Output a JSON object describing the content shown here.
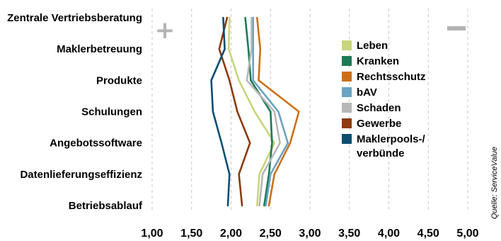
{
  "chart_data": {
    "type": "line",
    "orientation": "horizontal",
    "categories": [
      "Zentrale Vertriebsberatung",
      "Maklerbetreuung",
      "Produkte",
      "Schulungen",
      "Angebotssoftware",
      "Datenlieferungseffizienz",
      "Betriebsablauf"
    ],
    "xlim": [
      1.0,
      5.0
    ],
    "x_ticks": [
      "1,00",
      "1,50",
      "2,00",
      "2,50",
      "3,00",
      "3,50",
      "4,00",
      "4,50",
      "5,00"
    ],
    "grid": "vertical dashed",
    "legend_position": "right",
    "plus_symbol": "+",
    "minus_symbol": "−",
    "source": "Quelle: ServiceValue",
    "series": [
      {
        "name": "Leben",
        "color": "#c9d47c",
        "values": [
          1.98,
          1.97,
          2.1,
          2.3,
          2.55,
          2.36,
          2.33
        ]
      },
      {
        "name": "Kranken",
        "color": "#1d7a55",
        "values": [
          2.18,
          2.22,
          2.25,
          2.5,
          2.52,
          2.48,
          2.42
        ]
      },
      {
        "name": "Rechtsschutz",
        "color": "#cc7018",
        "values": [
          2.33,
          2.37,
          2.35,
          2.86,
          2.75,
          2.55,
          2.48
        ]
      },
      {
        "name": "bAV",
        "color": "#6aa3c3",
        "values": [
          2.28,
          2.28,
          2.28,
          2.6,
          2.72,
          2.5,
          2.44
        ]
      },
      {
        "name": "Schaden",
        "color": "#b7b7b7",
        "values": [
          2.26,
          2.26,
          2.2,
          2.55,
          2.62,
          2.4,
          2.36
        ]
      },
      {
        "name": "Gewerbe",
        "color": "#8c3a0e",
        "values": [
          1.95,
          1.85,
          1.98,
          2.08,
          2.24,
          2.1,
          2.14
        ]
      },
      {
        "name": "Maklerpools-/\nverbünde",
        "color": "#0a4e72",
        "values": [
          1.9,
          1.92,
          1.75,
          1.77,
          1.88,
          1.98,
          1.96
        ]
      }
    ]
  }
}
